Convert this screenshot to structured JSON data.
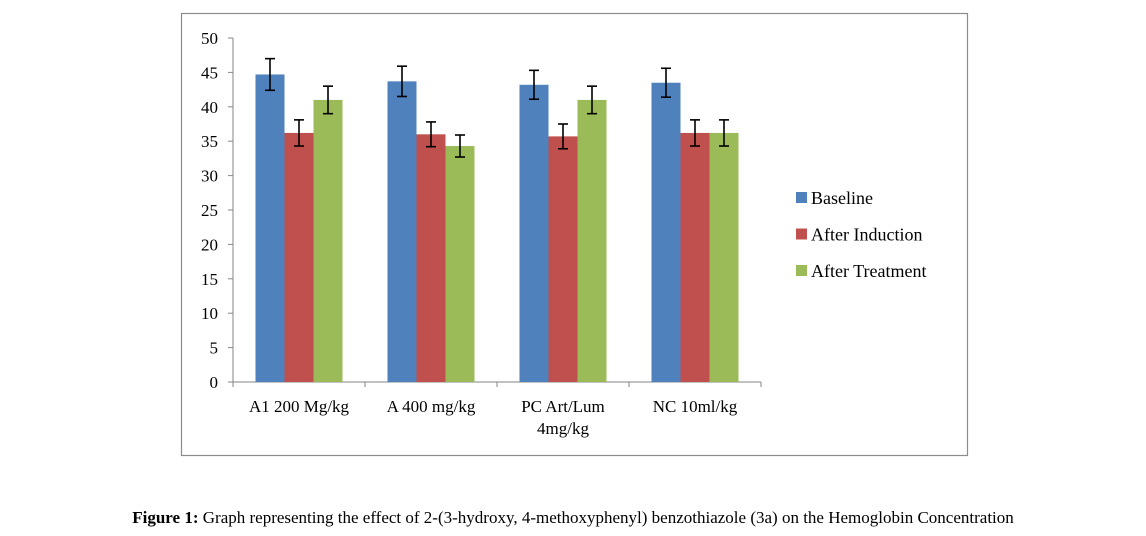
{
  "chart_data": {
    "type": "bar",
    "categories": [
      [
        "A1 200 Mg/kg"
      ],
      [
        "A 400 mg/kg"
      ],
      [
        "PC Art/Lum",
        "4mg/kg"
      ],
      [
        "NC 10ml/kg"
      ]
    ],
    "series": [
      {
        "name": "Baseline",
        "color": "#4F81BD",
        "values": [
          44.7,
          43.7,
          43.2,
          43.5
        ],
        "errors": [
          2.3,
          2.2,
          2.1,
          2.1
        ]
      },
      {
        "name": "After Induction",
        "color": "#C0504D",
        "values": [
          36.2,
          36.0,
          35.7,
          36.2
        ],
        "errors": [
          1.9,
          1.8,
          1.8,
          1.9
        ]
      },
      {
        "name": "After Treatment",
        "color": "#9BBB59",
        "values": [
          41.0,
          34.3,
          41.0,
          36.2
        ],
        "errors": [
          2.0,
          1.6,
          2.0,
          1.9
        ]
      }
    ],
    "ylim": [
      0,
      50
    ],
    "yticks": [
      0,
      5,
      10,
      15,
      20,
      25,
      30,
      35,
      40,
      45,
      50
    ],
    "legend_position": "right",
    "grid": false,
    "title": "",
    "xlabel": "",
    "ylabel": ""
  },
  "caption": {
    "lead": "Figure 1:",
    "text": " Graph representing the effect of 2-(3-hydroxy, 4-methoxyphenyl) benzothiazole (3a) on the Hemoglobin Concentration"
  }
}
